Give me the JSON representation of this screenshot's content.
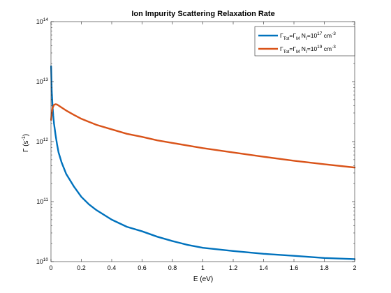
{
  "chart_data": {
    "type": "line",
    "title": "Ion Impurity Scattering Relaxation Rate",
    "xlabel": "E (eV)",
    "ylabel": "Γ (s",
    "ylabel_sup": "-1",
    "ylabel_close": ")",
    "xlim": [
      0,
      2
    ],
    "ylim": [
      10000000000.0,
      100000000000000.0
    ],
    "yscale": "log",
    "grid": false,
    "legend_position": "top-right",
    "x_ticks": [
      0,
      0.2,
      0.4,
      0.6,
      0.8,
      1,
      1.2,
      1.4,
      1.6,
      1.8,
      2
    ],
    "x_tick_labels": [
      "0",
      "0.2",
      "0.4",
      "0.6",
      "0.8",
      "1",
      "1.2",
      "1.4",
      "1.6",
      "1.8",
      "2"
    ],
    "y_ticks": [
      {
        "value": 10000000000.0,
        "base": "10",
        "exp": "10"
      },
      {
        "value": 100000000000.0,
        "base": "10",
        "exp": "11"
      },
      {
        "value": 1000000000000.0,
        "base": "10",
        "exp": "12"
      },
      {
        "value": 10000000000000.0,
        "base": "10",
        "exp": "13"
      },
      {
        "value": 100000000000000.0,
        "base": "10",
        "exp": "14"
      }
    ],
    "legend": [
      {
        "p1": "Γ",
        "s1": "Tot",
        "p2": "=Γ",
        "s2": "M",
        "p3": " N",
        "s3": "I",
        "p4": "=10",
        "sup": "17",
        "p5": " cm",
        "sup2": "-3"
      },
      {
        "p1": "Γ",
        "s1": "Tot",
        "p2": "=Γ",
        "s2": "M",
        "p3": " N",
        "s3": "I",
        "p4": "=10",
        "sup": "19",
        "p5": " cm",
        "sup2": "-3"
      }
    ],
    "series": [
      {
        "color": "#0072bd",
        "x": [
          0.001,
          0.005,
          0.01,
          0.015,
          0.02,
          0.03,
          0.04,
          0.05,
          0.07,
          0.1,
          0.15,
          0.2,
          0.25,
          0.3,
          0.4,
          0.5,
          0.6,
          0.7,
          0.8,
          0.9,
          1.0,
          1.2,
          1.4,
          1.6,
          1.8,
          2.0
        ],
        "y": [
          18000000000000.0,
          7000000000000.0,
          4000000000000.0,
          2700000000000.0,
          2000000000000.0,
          1300000000000.0,
          900000000000.0,
          660000000000.0,
          450000000000.0,
          290000000000.0,
          180000000000.0,
          120000000000.0,
          90000000000.0,
          72000000000.0,
          50000000000.0,
          38000000000.0,
          32000000000.0,
          26000000000.0,
          22000000000.0,
          19000000000.0,
          17000000000.0,
          15000000000.0,
          13500000000.0,
          12500000000.0,
          11500000000.0,
          11000000000.0
        ]
      },
      {
        "color": "#d95319",
        "x": [
          0.001,
          0.005,
          0.01,
          0.02,
          0.03,
          0.04,
          0.05,
          0.07,
          0.1,
          0.15,
          0.2,
          0.3,
          0.4,
          0.5,
          0.6,
          0.7,
          0.8,
          1.0,
          1.2,
          1.4,
          1.6,
          1.8,
          2.0
        ],
        "y": [
          2300000000000.0,
          3000000000000.0,
          3600000000000.0,
          4100000000000.0,
          4200000000000.0,
          4150000000000.0,
          4000000000000.0,
          3700000000000.0,
          3300000000000.0,
          2800000000000.0,
          2400000000000.0,
          1900000000000.0,
          1600000000000.0,
          1350000000000.0,
          1200000000000.0,
          1050000000000.0,
          950000000000.0,
          780000000000.0,
          660000000000.0,
          560000000000.0,
          480000000000.0,
          420000000000.0,
          370000000000.0
        ]
      }
    ]
  }
}
